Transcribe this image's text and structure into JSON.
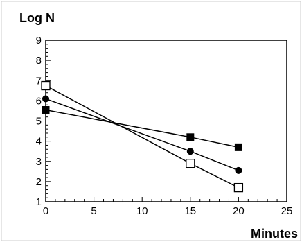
{
  "chart_data": {
    "type": "line",
    "xlabel": "Minutes",
    "ylabel": "Log N",
    "xlim": [
      0,
      25
    ],
    "ylim": [
      1,
      9
    ],
    "x_ticks": [
      0,
      5,
      10,
      15,
      20,
      25
    ],
    "y_ticks": [
      1,
      2,
      3,
      4,
      5,
      6,
      7,
      8,
      9
    ],
    "grid": false,
    "series": [
      {
        "marker": "filled-square",
        "color": "#000000",
        "x": [
          0,
          15,
          20
        ],
        "y": [
          5.55,
          4.2,
          3.7
        ]
      },
      {
        "marker": "filled-circle",
        "color": "#000000",
        "x": [
          0,
          15,
          20
        ],
        "y": [
          6.1,
          3.5,
          2.55
        ]
      },
      {
        "marker": "open-square",
        "color": "#000000",
        "x": [
          0,
          15,
          20
        ],
        "y": [
          6.75,
          2.9,
          1.7
        ]
      }
    ]
  }
}
